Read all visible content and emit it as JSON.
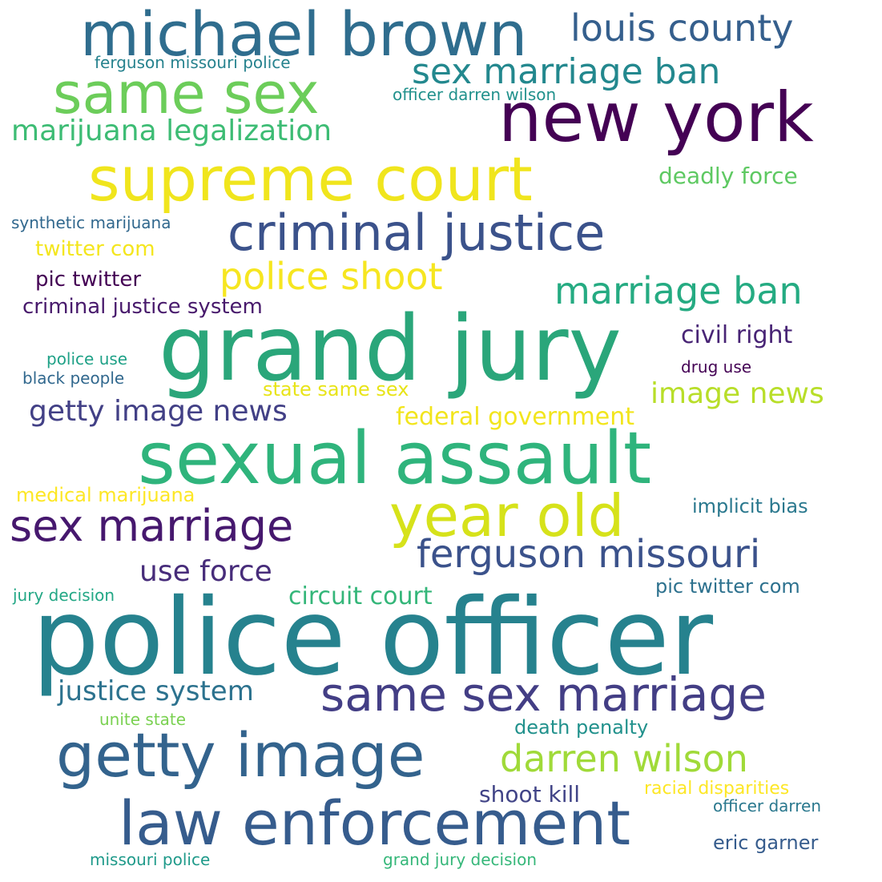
{
  "words": [
    {
      "text": "police officer",
      "color": "#26828e"
    },
    {
      "text": "grand jury",
      "color": "#2aa67a"
    },
    {
      "text": "sexual assault",
      "color": "#2fb47c"
    },
    {
      "text": "michael brown",
      "color": "#2f6d8e"
    },
    {
      "text": "new york",
      "color": "#440154"
    },
    {
      "text": "supreme court",
      "color": "#f0e51d"
    },
    {
      "text": "same sex",
      "color": "#6ccd5a"
    },
    {
      "text": "criminal justice",
      "color": "#3b528b"
    },
    {
      "text": "getty image",
      "color": "#33638d"
    },
    {
      "text": "law enforcement",
      "color": "#365c8d"
    },
    {
      "text": "year old",
      "color": "#d6e21a"
    },
    {
      "text": "sex marriage",
      "color": "#46186e"
    },
    {
      "text": "same sex marriage",
      "color": "#433e85"
    },
    {
      "text": "ferguson missouri",
      "color": "#3b528b"
    },
    {
      "text": "darren wilson",
      "color": "#a0da39"
    },
    {
      "text": "louis county",
      "color": "#355f8d"
    },
    {
      "text": "sex marriage ban",
      "color": "#23888e"
    },
    {
      "text": "marriage ban",
      "color": "#25ab82"
    },
    {
      "text": "police shoot",
      "color": "#f6e620"
    },
    {
      "text": "marijuana legalization",
      "color": "#3dbc74"
    },
    {
      "text": "getty image news",
      "color": "#424086"
    },
    {
      "text": "image news",
      "color": "#b8de29"
    },
    {
      "text": "use force",
      "color": "#472c7a"
    },
    {
      "text": "justice system",
      "color": "#2c728e"
    },
    {
      "text": "federal government",
      "color": "#f2e51d"
    },
    {
      "text": "circuit court",
      "color": "#34b679"
    },
    {
      "text": "civil right",
      "color": "#482475"
    },
    {
      "text": "criminal justice system",
      "color": "#481a6c"
    },
    {
      "text": "pic twitter",
      "color": "#440154"
    },
    {
      "text": "twitter com",
      "color": "#f4e61e"
    },
    {
      "text": "deadly force",
      "color": "#5ec962"
    },
    {
      "text": "state same sex",
      "color": "#e8e419"
    },
    {
      "text": "medical marijuana",
      "color": "#fde725"
    },
    {
      "text": "implicit bias",
      "color": "#2a788e"
    },
    {
      "text": "pic twitter com",
      "color": "#2d718e"
    },
    {
      "text": "death penalty",
      "color": "#21918c"
    },
    {
      "text": "shoot kill",
      "color": "#414487"
    },
    {
      "text": "racial disparities",
      "color": "#fde725"
    },
    {
      "text": "officer darren",
      "color": "#2a788e"
    },
    {
      "text": "eric garner",
      "color": "#365c8d"
    },
    {
      "text": "ferguson missouri police",
      "color": "#26828e"
    },
    {
      "text": "officer darren wilson",
      "color": "#21918c"
    },
    {
      "text": "synthetic marijuana",
      "color": "#31688e"
    },
    {
      "text": "police use",
      "color": "#1fa187"
    },
    {
      "text": "black people",
      "color": "#31688e"
    },
    {
      "text": "drug use",
      "color": "#440154"
    },
    {
      "text": "jury decision",
      "color": "#22a785"
    },
    {
      "text": "unite state",
      "color": "#7ad151"
    },
    {
      "text": "missouri police",
      "color": "#1f9a8a"
    },
    {
      "text": "grand jury decision",
      "color": "#35b779"
    }
  ]
}
